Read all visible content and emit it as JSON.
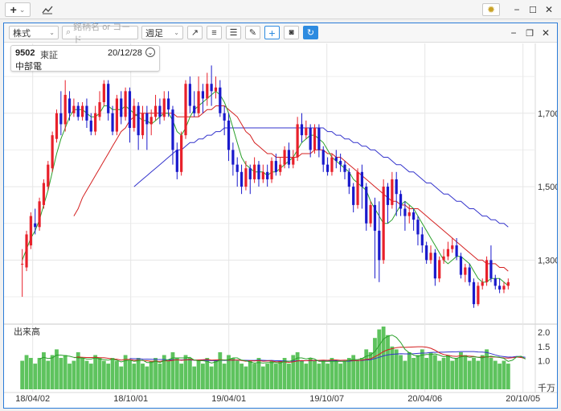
{
  "app_toolbar": {
    "add_label": "+",
    "add_caret": "⌄",
    "chart_icon": "📈"
  },
  "window_controls": {
    "settings_icon": "✹",
    "minimize": "−",
    "maximize": "☐",
    "close": "✕"
  },
  "chart_window_controls": {
    "minimize": "−",
    "restore": "❐",
    "close": "✕"
  },
  "chart_toolbar": {
    "market_select": "株式",
    "search_placeholder": "銘柄名 or コード",
    "period_select": "週足",
    "icons": [
      "trend-line",
      "horizontal-lines",
      "fib-lines",
      "pen",
      "crosshair",
      "camera",
      "refresh"
    ]
  },
  "symbol_info": {
    "code": "9502",
    "exchange": "東証",
    "date": "20/12/28",
    "name": "中部電"
  },
  "price_axis": {
    "ticks": [
      "1,700",
      "1,500",
      "1,300"
    ],
    "tick_values": [
      1700,
      1500,
      1300
    ]
  },
  "volume_panel": {
    "title": "出来高",
    "ticks": [
      "2.0",
      "1.5",
      "1.0"
    ],
    "tick_values": [
      2.0,
      1.5,
      1.0
    ],
    "unit": "千万"
  },
  "date_axis": {
    "labels": [
      "18/04/02",
      "18/10/01",
      "19/04/01",
      "19/10/07",
      "20/04/06",
      "20/10/05"
    ]
  },
  "colors": {
    "up": "#e8202a",
    "down": "#1a1acc",
    "ma_short": "#2aa02a",
    "ma_mid": "#d42020",
    "ma_long": "#3333cc",
    "volume": "#5ec35e",
    "accent": "#2d8be0"
  },
  "chart_data": {
    "type": "candlestick",
    "period": "週足",
    "y_range": [
      1130,
      1890
    ],
    "volume_range": [
      0,
      2.2
    ],
    "candles": [
      [
        1290,
        1290,
        1200,
        1330
      ],
      [
        1280,
        1370,
        1270,
        1380
      ],
      [
        1340,
        1420,
        1330,
        1430
      ],
      [
        1400,
        1390,
        1370,
        1440
      ],
      [
        1390,
        1460,
        1380,
        1470
      ],
      [
        1450,
        1510,
        1440,
        1520
      ],
      [
        1500,
        1560,
        1490,
        1570
      ],
      [
        1550,
        1640,
        1540,
        1650
      ],
      [
        1630,
        1700,
        1620,
        1710
      ],
      [
        1700,
        1670,
        1640,
        1760
      ],
      [
        1670,
        1750,
        1650,
        1790
      ],
      [
        1740,
        1700,
        1680,
        1760
      ],
      [
        1700,
        1720,
        1690,
        1740
      ],
      [
        1720,
        1690,
        1680,
        1730
      ],
      [
        1690,
        1720,
        1680,
        1730
      ],
      [
        1720,
        1680,
        1660,
        1740
      ],
      [
        1680,
        1650,
        1640,
        1700
      ],
      [
        1650,
        1700,
        1640,
        1720
      ],
      [
        1690,
        1730,
        1680,
        1760
      ],
      [
        1730,
        1780,
        1720,
        1790
      ],
      [
        1780,
        1700,
        1680,
        1790
      ],
      [
        1700,
        1650,
        1640,
        1720
      ],
      [
        1650,
        1740,
        1640,
        1750
      ],
      [
        1740,
        1690,
        1670,
        1760
      ],
      [
        1690,
        1760,
        1680,
        1770
      ],
      [
        1760,
        1660,
        1620,
        1770
      ],
      [
        1660,
        1720,
        1650,
        1740
      ],
      [
        1720,
        1640,
        1600,
        1730
      ],
      [
        1640,
        1700,
        1630,
        1720
      ],
      [
        1700,
        1670,
        1600,
        1720
      ],
      [
        1670,
        1690,
        1640,
        1710
      ],
      [
        1690,
        1720,
        1680,
        1750
      ],
      [
        1720,
        1690,
        1670,
        1740
      ],
      [
        1690,
        1740,
        1680,
        1760
      ],
      [
        1740,
        1710,
        1690,
        1760
      ],
      [
        1710,
        1600,
        1560,
        1720
      ],
      [
        1600,
        1540,
        1520,
        1620
      ],
      [
        1540,
        1640,
        1530,
        1650
      ],
      [
        1640,
        1780,
        1630,
        1790
      ],
      [
        1780,
        1720,
        1700,
        1800
      ],
      [
        1720,
        1700,
        1690,
        1760
      ],
      [
        1700,
        1760,
        1690,
        1800
      ],
      [
        1760,
        1740,
        1700,
        1780
      ],
      [
        1740,
        1780,
        1720,
        1810
      ],
      [
        1780,
        1760,
        1720,
        1830
      ],
      [
        1760,
        1770,
        1740,
        1800
      ],
      [
        1770,
        1700,
        1690,
        1790
      ],
      [
        1700,
        1680,
        1640,
        1720
      ],
      [
        1680,
        1600,
        1570,
        1700
      ],
      [
        1600,
        1560,
        1530,
        1620
      ],
      [
        1560,
        1540,
        1500,
        1580
      ],
      [
        1540,
        1500,
        1480,
        1560
      ],
      [
        1500,
        1550,
        1490,
        1570
      ],
      [
        1550,
        1520,
        1480,
        1560
      ],
      [
        1520,
        1560,
        1510,
        1580
      ],
      [
        1560,
        1520,
        1500,
        1570
      ],
      [
        1520,
        1540,
        1510,
        1560
      ],
      [
        1540,
        1520,
        1500,
        1560
      ],
      [
        1520,
        1570,
        1510,
        1580
      ],
      [
        1570,
        1540,
        1530,
        1590
      ],
      [
        1540,
        1560,
        1530,
        1580
      ],
      [
        1560,
        1600,
        1550,
        1610
      ],
      [
        1600,
        1560,
        1550,
        1620
      ],
      [
        1560,
        1580,
        1550,
        1600
      ],
      [
        1580,
        1670,
        1570,
        1690
      ],
      [
        1670,
        1640,
        1620,
        1700
      ],
      [
        1640,
        1660,
        1630,
        1680
      ],
      [
        1660,
        1600,
        1580,
        1670
      ],
      [
        1600,
        1660,
        1590,
        1670
      ],
      [
        1660,
        1600,
        1580,
        1670
      ],
      [
        1600,
        1560,
        1540,
        1610
      ],
      [
        1560,
        1540,
        1530,
        1580
      ],
      [
        1540,
        1580,
        1530,
        1590
      ],
      [
        1580,
        1570,
        1550,
        1600
      ],
      [
        1570,
        1560,
        1540,
        1590
      ],
      [
        1560,
        1540,
        1520,
        1570
      ],
      [
        1540,
        1500,
        1480,
        1550
      ],
      [
        1500,
        1450,
        1430,
        1510
      ],
      [
        1450,
        1540,
        1440,
        1550
      ],
      [
        1540,
        1500,
        1440,
        1560
      ],
      [
        1500,
        1400,
        1380,
        1510
      ],
      [
        1400,
        1450,
        1390,
        1460
      ],
      [
        1450,
        1380,
        1250,
        1470
      ],
      [
        1380,
        1300,
        1240,
        1460
      ],
      [
        1300,
        1500,
        1290,
        1520
      ],
      [
        1500,
        1450,
        1400,
        1510
      ],
      [
        1450,
        1520,
        1440,
        1540
      ],
      [
        1520,
        1480,
        1420,
        1540
      ],
      [
        1480,
        1440,
        1420,
        1490
      ],
      [
        1440,
        1420,
        1380,
        1460
      ],
      [
        1420,
        1430,
        1400,
        1450
      ],
      [
        1430,
        1410,
        1380,
        1440
      ],
      [
        1410,
        1370,
        1340,
        1420
      ],
      [
        1370,
        1340,
        1320,
        1390
      ],
      [
        1340,
        1300,
        1290,
        1350
      ],
      [
        1300,
        1320,
        1290,
        1340
      ],
      [
        1320,
        1250,
        1230,
        1330
      ],
      [
        1250,
        1300,
        1240,
        1310
      ],
      [
        1300,
        1310,
        1290,
        1330
      ],
      [
        1310,
        1330,
        1300,
        1350
      ],
      [
        1330,
        1340,
        1320,
        1360
      ],
      [
        1340,
        1310,
        1300,
        1360
      ],
      [
        1310,
        1260,
        1250,
        1320
      ],
      [
        1260,
        1280,
        1240,
        1290
      ],
      [
        1280,
        1240,
        1230,
        1290
      ],
      [
        1240,
        1180,
        1170,
        1250
      ],
      [
        1180,
        1230,
        1175,
        1240
      ],
      [
        1230,
        1240,
        1220,
        1250
      ],
      [
        1240,
        1300,
        1230,
        1310
      ],
      [
        1300,
        1250,
        1240,
        1340
      ],
      [
        1250,
        1230,
        1220,
        1260
      ],
      [
        1230,
        1220,
        1210,
        1250
      ],
      [
        1220,
        1230,
        1210,
        1240
      ],
      [
        1230,
        1240,
        1220,
        1250
      ]
    ],
    "volume": [
      1.0,
      1.2,
      1.1,
      0.9,
      1.1,
      1.3,
      1.0,
      1.2,
      1.4,
      1.1,
      1.2,
      0.9,
      1.0,
      1.3,
      1.1,
      1.0,
      0.9,
      1.2,
      1.1,
      1.0,
      0.9,
      1.1,
      1.0,
      0.8,
      1.2,
      1.0,
      0.9,
      1.1,
      0.9,
      0.8,
      1.0,
      1.1,
      0.9,
      1.2,
      1.0,
      1.3,
      1.1,
      0.9,
      1.2,
      1.1,
      0.8,
      1.0,
      0.9,
      1.1,
      0.8,
      1.0,
      1.3,
      0.9,
      1.2,
      1.1,
      1.0,
      0.9,
      0.8,
      1.0,
      0.9,
      1.1,
      0.8,
      0.9,
      1.0,
      0.9,
      1.0,
      1.1,
      0.9,
      1.2,
      1.3,
      1.0,
      0.9,
      1.1,
      1.0,
      0.9,
      1.0,
      0.9,
      1.1,
      1.0,
      0.9,
      1.0,
      1.1,
      1.2,
      1.0,
      1.1,
      1.4,
      1.3,
      1.8,
      2.1,
      2.2,
      1.9,
      1.5,
      1.4,
      1.2,
      1.0,
      1.3,
      1.1,
      1.2,
      1.4,
      1.1,
      1.3,
      1.2,
      1.0,
      1.1,
      1.2,
      1.0,
      1.1,
      1.3,
      1.2,
      1.0,
      1.1,
      1.0,
      1.2,
      1.4,
      1.1,
      1.0,
      0.9,
      1.0,
      0.9,
      1.3,
      1.6,
      1.0,
      0.5
    ],
    "ma_short": [
      1300,
      1330,
      1360,
      1380,
      1410,
      1450,
      1490,
      1540,
      1590,
      1630,
      1660,
      1690,
      1710,
      1710,
      1710,
      1700,
      1690,
      1690,
      1700,
      1720,
      1720,
      1710,
      1710,
      1710,
      1720,
      1710,
      1700,
      1690,
      1680,
      1680,
      1670,
      1680,
      1690,
      1700,
      1700,
      1680,
      1650,
      1640,
      1660,
      1690,
      1710,
      1720,
      1730,
      1740,
      1750,
      1760,
      1750,
      1730,
      1700,
      1660,
      1620,
      1580,
      1560,
      1550,
      1540,
      1540,
      1540,
      1530,
      1540,
      1540,
      1550,
      1560,
      1570,
      1580,
      1600,
      1620,
      1630,
      1640,
      1640,
      1630,
      1620,
      1600,
      1580,
      1570,
      1560,
      1550,
      1540,
      1520,
      1510,
      1500,
      1490,
      1460,
      1440,
      1420,
      1400,
      1400,
      1410,
      1430,
      1450,
      1460,
      1450,
      1440,
      1420,
      1400,
      1380,
      1360,
      1340,
      1320,
      1300,
      1290,
      1300,
      1310,
      1310,
      1300,
      1290,
      1270,
      1250,
      1240,
      1240,
      1250,
      1250,
      1250,
      1240,
      1230,
      1230,
      1230
    ],
    "ma_mid": [
      null,
      null,
      null,
      null,
      null,
      null,
      null,
      null,
      null,
      null,
      null,
      null,
      1420,
      1440,
      1470,
      1490,
      1510,
      1530,
      1550,
      1570,
      1590,
      1610,
      1630,
      1650,
      1660,
      1680,
      1690,
      1700,
      1700,
      1700,
      1700,
      1700,
      1700,
      1700,
      1700,
      1700,
      1690,
      1690,
      1690,
      1690,
      1690,
      1690,
      1700,
      1710,
      1710,
      1720,
      1720,
      1720,
      1710,
      1700,
      1690,
      1670,
      1650,
      1640,
      1620,
      1610,
      1600,
      1590,
      1590,
      1580,
      1580,
      1580,
      1580,
      1580,
      1580,
      1590,
      1590,
      1590,
      1600,
      1600,
      1600,
      1590,
      1590,
      1580,
      1580,
      1570,
      1560,
      1550,
      1540,
      1530,
      1520,
      1510,
      1500,
      1490,
      1480,
      1470,
      1460,
      1460,
      1450,
      1450,
      1440,
      1440,
      1440,
      1430,
      1420,
      1410,
      1400,
      1390,
      1380,
      1370,
      1360,
      1350,
      1340,
      1330,
      1320,
      1310,
      1300,
      1300,
      1290,
      1290,
      1290,
      1280,
      1280,
      1270,
      1270,
      1260
    ],
    "ma_long": [
      null,
      null,
      null,
      null,
      null,
      null,
      null,
      null,
      null,
      null,
      null,
      null,
      null,
      null,
      null,
      null,
      null,
      null,
      null,
      null,
      null,
      null,
      null,
      null,
      null,
      null,
      1500,
      1510,
      1520,
      1530,
      1540,
      1550,
      1560,
      1570,
      1580,
      1590,
      1600,
      1600,
      1610,
      1620,
      1620,
      1630,
      1630,
      1640,
      1640,
      1650,
      1650,
      1660,
      1660,
      1660,
      1660,
      1660,
      1660,
      1660,
      1660,
      1660,
      1660,
      1660,
      1660,
      1660,
      1660,
      1660,
      1660,
      1660,
      1660,
      1660,
      1660,
      1660,
      1660,
      1660,
      1660,
      1650,
      1650,
      1640,
      1640,
      1630,
      1630,
      1620,
      1620,
      1610,
      1610,
      1600,
      1600,
      1590,
      1580,
      1580,
      1570,
      1560,
      1560,
      1550,
      1540,
      1540,
      1530,
      1520,
      1510,
      1510,
      1500,
      1490,
      1480,
      1480,
      1470,
      1460,
      1460,
      1450,
      1440,
      1440,
      1430,
      1420,
      1420,
      1410,
      1410,
      1400,
      1400,
      1390,
      1390,
      1380
    ]
  }
}
